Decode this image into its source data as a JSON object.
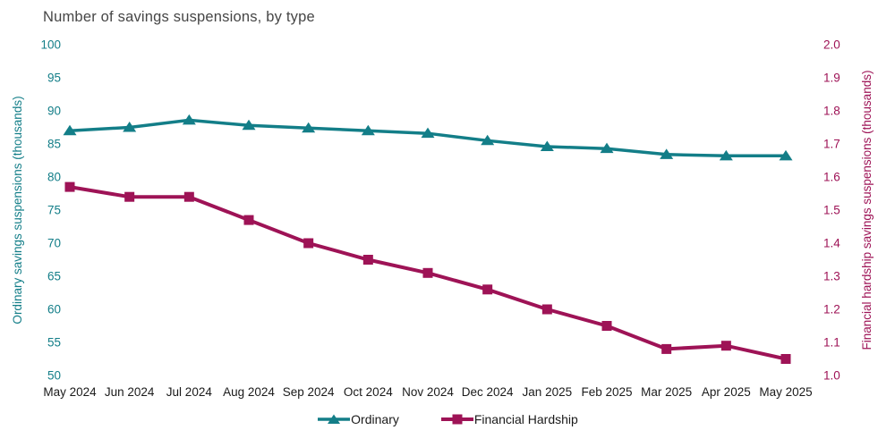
{
  "title": "Number of savings suspensions, by type",
  "colors": {
    "ordinary": "#137e88",
    "hardship": "#9e1356",
    "title_text": "#464646",
    "axis_label_text": "#1a1a1a",
    "background": "#ffffff"
  },
  "chart_data": {
    "type": "line",
    "title": "Number of savings suspensions, by type",
    "categories": [
      "May 2024",
      "Jun 2024",
      "Jul 2024",
      "Aug 2024",
      "Sep 2024",
      "Oct 2024",
      "Nov 2024",
      "Dec 2024",
      "Jan 2025",
      "Feb 2025",
      "Mar 2025",
      "Apr 2025",
      "May 2025"
    ],
    "series": [
      {
        "name": "Ordinary",
        "axis": "left",
        "marker": "triangle",
        "color": "#137e88",
        "values": [
          87.0,
          87.5,
          88.6,
          87.8,
          87.4,
          87.0,
          86.6,
          85.5,
          84.6,
          84.3,
          83.4,
          83.2,
          83.2
        ]
      },
      {
        "name": "Financial Hardship",
        "axis": "right",
        "marker": "square",
        "color": "#9e1356",
        "values": [
          1.57,
          1.54,
          1.54,
          1.47,
          1.4,
          1.35,
          1.31,
          1.26,
          1.2,
          1.15,
          1.08,
          1.09,
          1.05
        ]
      }
    ],
    "left_axis": {
      "label": "Ordinary savings suspensions (thousands)",
      "min": 50,
      "max": 100,
      "ticks": [
        "100",
        "95",
        "90",
        "85",
        "80",
        "75",
        "70",
        "65",
        "60",
        "55",
        "50"
      ]
    },
    "right_axis": {
      "label": "Financial hardship savings suspensions (thousands)",
      "min": 1.0,
      "max": 2.0,
      "ticks": [
        "2.0",
        "1.9",
        "1.8",
        "1.7",
        "1.6",
        "1.5",
        "1.4",
        "1.3",
        "1.2",
        "1.1",
        "1.0"
      ]
    },
    "grid": false,
    "legend_position": "bottom"
  },
  "legend": {
    "items": [
      {
        "label": "Ordinary",
        "marker": "triangle"
      },
      {
        "label": "Financial Hardship",
        "marker": "square"
      }
    ]
  }
}
